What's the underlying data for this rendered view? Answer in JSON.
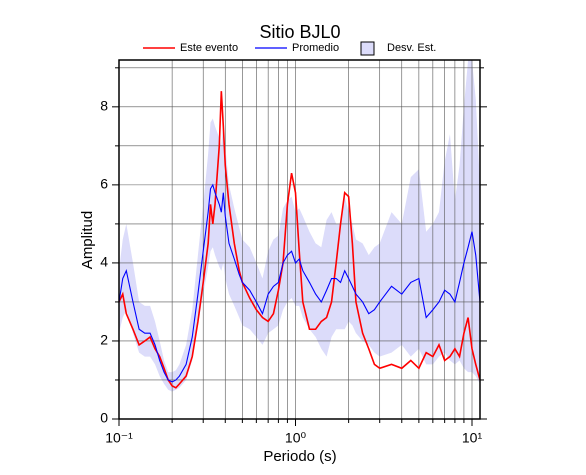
{
  "chart_data": {
    "type": "line",
    "title": "Sitio BJL0",
    "x_label": "Periodo (s)",
    "y_label": "Amplitud",
    "log_x": true,
    "grid": true,
    "xlim": [
      0.1,
      11.1
    ],
    "ylim": [
      0,
      9.2
    ],
    "xticks": [
      {
        "value": 0.1,
        "label": "10⁻¹"
      },
      {
        "value": 1,
        "label": "10⁰"
      },
      {
        "value": 10,
        "label": "10¹"
      }
    ],
    "x_minor_ticks": [
      0.2,
      0.3,
      0.4,
      0.5,
      0.6,
      0.7,
      0.8,
      0.9,
      2,
      3,
      4,
      5,
      6,
      7,
      8,
      9
    ],
    "yticks": [
      0,
      2,
      4,
      6,
      8
    ],
    "y_minor_ticks": [
      1,
      3,
      5,
      7,
      9
    ],
    "x": [
      0.1,
      0.105,
      0.11,
      0.12,
      0.13,
      0.14,
      0.15,
      0.16,
      0.17,
      0.18,
      0.19,
      0.2,
      0.21,
      0.22,
      0.24,
      0.26,
      0.28,
      0.3,
      0.32,
      0.33,
      0.34,
      0.35,
      0.37,
      0.38,
      0.39,
      0.4,
      0.42,
      0.45,
      0.48,
      0.5,
      0.55,
      0.6,
      0.65,
      0.7,
      0.75,
      0.8,
      0.85,
      0.9,
      0.95,
      1.0,
      1.05,
      1.1,
      1.2,
      1.3,
      1.4,
      1.5,
      1.6,
      1.7,
      1.8,
      1.9,
      2.0,
      2.1,
      2.2,
      2.4,
      2.6,
      2.8,
      3.0,
      3.5,
      4.0,
      4.5,
      5.0,
      5.5,
      6.0,
      6.5,
      7.0,
      7.5,
      8.0,
      8.5,
      9.0,
      9.5,
      10.0,
      10.5,
      11.1
    ],
    "series": [
      {
        "name": "Este evento",
        "color": "#ff0000",
        "values": [
          3.0,
          3.2,
          2.7,
          2.3,
          1.9,
          2.0,
          2.1,
          1.8,
          1.6,
          1.3,
          1.0,
          0.85,
          0.8,
          0.9,
          1.1,
          1.6,
          2.5,
          3.5,
          4.5,
          5.5,
          5.0,
          5.5,
          7.0,
          8.4,
          7.5,
          6.5,
          5.5,
          4.5,
          3.8,
          3.5,
          3.1,
          2.8,
          2.6,
          2.5,
          2.7,
          3.3,
          4.0,
          5.5,
          6.3,
          5.8,
          4.3,
          3.0,
          2.3,
          2.3,
          2.5,
          2.6,
          3.0,
          4.0,
          5.0,
          5.8,
          5.7,
          4.5,
          3.0,
          2.2,
          1.8,
          1.4,
          1.3,
          1.4,
          1.3,
          1.5,
          1.3,
          1.7,
          1.6,
          1.9,
          1.5,
          1.6,
          1.8,
          1.6,
          2.2,
          2.6,
          1.8,
          1.4,
          1.0
        ]
      },
      {
        "name": "Promedio",
        "color": "#0000ff",
        "values": [
          3.0,
          3.6,
          3.8,
          3.0,
          2.3,
          2.2,
          2.2,
          1.9,
          1.5,
          1.2,
          1.0,
          0.95,
          1.0,
          1.1,
          1.4,
          2.1,
          3.2,
          4.3,
          5.3,
          5.9,
          6.0,
          5.8,
          5.5,
          5.3,
          5.8,
          5.2,
          4.5,
          4.1,
          3.7,
          3.5,
          3.3,
          3.0,
          2.7,
          3.2,
          3.4,
          3.5,
          4.0,
          4.2,
          4.3,
          4.0,
          4.1,
          3.8,
          3.5,
          3.2,
          3.0,
          3.3,
          3.6,
          3.6,
          3.5,
          3.8,
          3.6,
          3.4,
          3.2,
          3.0,
          2.7,
          2.8,
          3.0,
          3.4,
          3.2,
          3.5,
          3.6,
          2.6,
          2.8,
          3.0,
          3.3,
          3.2,
          3.0,
          3.5,
          4.0,
          4.4,
          4.8,
          4.2,
          3.0
        ]
      },
      {
        "name": "Desv. Est.",
        "color": "#dcdcfa",
        "lower": [
          2.2,
          2.6,
          2.8,
          2.2,
          1.7,
          1.6,
          1.6,
          1.4,
          1.1,
          0.9,
          0.75,
          0.7,
          0.75,
          0.8,
          1.0,
          1.5,
          2.4,
          3.2,
          3.9,
          4.3,
          4.4,
          4.2,
          3.9,
          3.8,
          4.0,
          3.6,
          3.2,
          2.9,
          2.6,
          2.4,
          2.3,
          2.1,
          1.9,
          2.2,
          2.3,
          2.4,
          2.8,
          3.0,
          3.1,
          2.9,
          2.9,
          2.6,
          2.3,
          2.1,
          1.8,
          1.6,
          2.1,
          2.3,
          2.3,
          2.3,
          2.5,
          2.4,
          2.2,
          2.0,
          1.9,
          1.7,
          1.6,
          1.7,
          1.9,
          1.6,
          1.8,
          1.4,
          1.4,
          1.6,
          1.7,
          1.5,
          1.4,
          1.5,
          1.3,
          1.2,
          1.2,
          1.1,
          0.9
        ],
        "upper": [
          3.8,
          4.6,
          5.0,
          4.0,
          3.0,
          2.9,
          2.9,
          2.5,
          2.0,
          1.5,
          1.2,
          1.2,
          1.25,
          1.4,
          1.9,
          2.8,
          4.2,
          5.5,
          6.8,
          7.6,
          7.7,
          7.5,
          7.2,
          7.0,
          7.6,
          7.0,
          6.0,
          5.4,
          4.9,
          4.6,
          4.4,
          4.0,
          3.6,
          4.3,
          4.6,
          4.7,
          5.4,
          5.6,
          5.7,
          5.3,
          5.4,
          5.2,
          4.8,
          4.5,
          4.4,
          5.1,
          5.3,
          5.0,
          5.0,
          5.7,
          5.3,
          5.0,
          4.6,
          4.5,
          4.2,
          4.4,
          4.5,
          5.3,
          5.0,
          6.2,
          6.4,
          4.8,
          5.0,
          5.3,
          6.6,
          7.3,
          5.6,
          6.5,
          8.0,
          9.2,
          9.2,
          8.2,
          6.0
        ]
      }
    ]
  }
}
